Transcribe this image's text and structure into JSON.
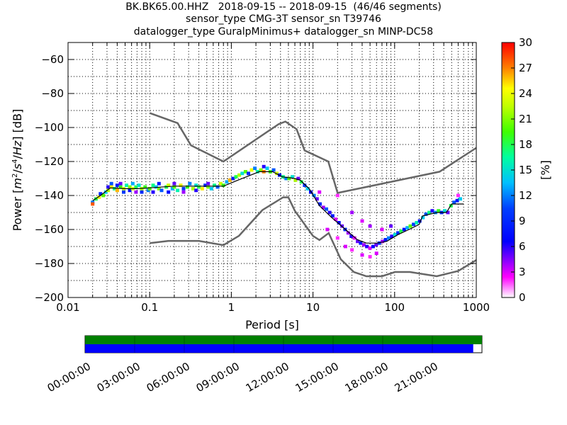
{
  "title_lines": [
    "BK.BK65.00.HHZ   2018-09-15 -- 2018-09-15  (46/46 segments)",
    "sensor_type CMG-3T sensor_sn T39746",
    "datalogger_type GuralpMinimus+ datalogger_sn MINP-DC58"
  ],
  "chart_data": {
    "type": "heatmap",
    "xlabel": "Period [s]",
    "ylabel": "Power [m²/s⁴/Hz] [dB]",
    "ylabel_parts": [
      "Power [",
      "m",
      "2",
      "/",
      "s",
      "4",
      "/",
      "Hz",
      "] [dB]"
    ],
    "xscale": "log",
    "xlim": [
      0.01,
      1000
    ],
    "ylim": [
      -200,
      -50
    ],
    "x_ticks": [
      0.01,
      0.1,
      1,
      10,
      100,
      1000
    ],
    "x_tick_labels": [
      "0.01",
      "0.1",
      "1",
      "10",
      "100",
      "1000"
    ],
    "y_ticks": [
      -200,
      -180,
      -160,
      -140,
      -120,
      -100,
      -80,
      -60
    ],
    "y_tick_labels": [
      "−200",
      "−180",
      "−160",
      "−140",
      "−120",
      "−100",
      "−80",
      "−60"
    ],
    "grid": true,
    "colorbar": {
      "label": "[%]",
      "range": [
        0,
        30
      ],
      "ticks": [
        0,
        3,
        6,
        9,
        12,
        15,
        18,
        21,
        24,
        27,
        30
      ],
      "tick_labels": [
        "0",
        "3",
        "6",
        "9",
        "12",
        "15",
        "18",
        "21",
        "24",
        "27",
        "30"
      ]
    },
    "noise_models": [
      {
        "name": "NHNM",
        "points": [
          [
            0.1,
            -91.5
          ],
          [
            0.22,
            -97.4
          ],
          [
            0.32,
            -110.5
          ],
          [
            0.8,
            -120
          ],
          [
            3.8,
            -98
          ],
          [
            4.6,
            -96.5
          ],
          [
            6.3,
            -101
          ],
          [
            7.9,
            -113.5
          ],
          [
            15.4,
            -120
          ],
          [
            20,
            -138.5
          ],
          [
            354.8,
            -126
          ],
          [
            1000,
            -112
          ]
        ]
      },
      {
        "name": "NLNM",
        "points": [
          [
            0.1,
            -168
          ],
          [
            0.17,
            -166.7
          ],
          [
            0.4,
            -166.7
          ],
          [
            0.8,
            -169.2
          ],
          [
            1.24,
            -163.7
          ],
          [
            2.4,
            -148.6
          ],
          [
            4.3,
            -141.1
          ],
          [
            5,
            -141.1
          ],
          [
            6,
            -149
          ],
          [
            10,
            -163.8
          ],
          [
            12,
            -166.2
          ],
          [
            15.6,
            -162.1
          ],
          [
            21.9,
            -177.5
          ],
          [
            31.6,
            -185
          ],
          [
            45,
            -187.5
          ],
          [
            70,
            -187.5
          ],
          [
            101,
            -185
          ],
          [
            154,
            -185
          ],
          [
            328,
            -187.5
          ],
          [
            600,
            -184.4
          ],
          [
            1000,
            -178
          ]
        ]
      }
    ],
    "mean_curve": [
      [
        0.02,
        -143
      ],
      [
        0.025,
        -140
      ],
      [
        0.033,
        -135.5
      ],
      [
        0.05,
        -136
      ],
      [
        0.07,
        -136
      ],
      [
        0.1,
        -135.5
      ],
      [
        0.2,
        -134.5
      ],
      [
        0.4,
        -134.5
      ],
      [
        0.8,
        -134.5
      ],
      [
        1.2,
        -131
      ],
      [
        2.2,
        -126
      ],
      [
        3.2,
        -126
      ],
      [
        4.2,
        -129
      ],
      [
        6,
        -130
      ],
      [
        7,
        -131
      ],
      [
        9,
        -136
      ],
      [
        12,
        -146
      ],
      [
        17,
        -153
      ],
      [
        25,
        -160
      ],
      [
        35,
        -166
      ],
      [
        45,
        -168
      ],
      [
        60,
        -168
      ],
      [
        80,
        -167
      ],
      [
        110,
        -163
      ],
      [
        150,
        -160
      ],
      [
        200,
        -157
      ],
      [
        220,
        -152
      ],
      [
        330,
        -150
      ],
      [
        430,
        -150
      ],
      [
        500,
        -145
      ],
      [
        700,
        -145
      ]
    ],
    "psd_cells": [
      [
        0.02,
        -144,
        12
      ],
      [
        0.02,
        -145,
        28
      ],
      [
        0.022,
        -142,
        18
      ],
      [
        0.024,
        -141,
        24
      ],
      [
        0.025,
        -139,
        9
      ],
      [
        0.027,
        -140,
        20
      ],
      [
        0.029,
        -138,
        14
      ],
      [
        0.031,
        -137,
        22
      ],
      [
        0.031,
        -135,
        6
      ],
      [
        0.034,
        -135,
        25
      ],
      [
        0.034,
        -133,
        11
      ],
      [
        0.037,
        -136,
        17
      ],
      [
        0.04,
        -134,
        8
      ],
      [
        0.04,
        -137,
        26
      ],
      [
        0.044,
        -135,
        19
      ],
      [
        0.044,
        -133,
        5
      ],
      [
        0.048,
        -136,
        23
      ],
      [
        0.048,
        -138,
        10
      ],
      [
        0.052,
        -134,
        16
      ],
      [
        0.057,
        -135,
        21
      ],
      [
        0.057,
        -137,
        7
      ],
      [
        0.062,
        -136,
        24
      ],
      [
        0.062,
        -133,
        13
      ],
      [
        0.068,
        -135,
        18
      ],
      [
        0.068,
        -138,
        4
      ],
      [
        0.074,
        -134,
        15
      ],
      [
        0.08,
        -136,
        22
      ],
      [
        0.08,
        -138,
        9
      ],
      [
        0.088,
        -135,
        19
      ],
      [
        0.096,
        -137,
        12
      ],
      [
        0.1,
        -136,
        20
      ],
      [
        0.11,
        -134,
        17
      ],
      [
        0.11,
        -138,
        6
      ],
      [
        0.12,
        -135,
        14
      ],
      [
        0.13,
        -136,
        21
      ],
      [
        0.13,
        -133,
        8
      ],
      [
        0.14,
        -137,
        11
      ],
      [
        0.16,
        -135,
        18
      ],
      [
        0.17,
        -134,
        23
      ],
      [
        0.17,
        -138,
        7
      ],
      [
        0.19,
        -136,
        13
      ],
      [
        0.2,
        -133,
        5
      ],
      [
        0.2,
        -135,
        20
      ],
      [
        0.22,
        -137,
        16
      ],
      [
        0.24,
        -134,
        24
      ],
      [
        0.26,
        -136,
        10
      ],
      [
        0.26,
        -138,
        4
      ],
      [
        0.29,
        -135,
        19
      ],
      [
        0.31,
        -133,
        12
      ],
      [
        0.34,
        -136,
        22
      ],
      [
        0.37,
        -134,
        15
      ],
      [
        0.37,
        -137,
        6
      ],
      [
        0.4,
        -135,
        18
      ],
      [
        0.44,
        -136,
        25
      ],
      [
        0.48,
        -134,
        9
      ],
      [
        0.52,
        -135,
        21
      ],
      [
        0.52,
        -133,
        5
      ],
      [
        0.57,
        -136,
        14
      ],
      [
        0.62,
        -134,
        17
      ],
      [
        0.68,
        -135,
        11
      ],
      [
        0.74,
        -133,
        23
      ],
      [
        0.8,
        -134,
        19
      ],
      [
        0.88,
        -132,
        13
      ],
      [
        0.96,
        -131,
        26
      ],
      [
        1.05,
        -130,
        8
      ],
      [
        1.14,
        -129,
        18
      ],
      [
        1.25,
        -128,
        22
      ],
      [
        1.36,
        -127,
        15
      ],
      [
        1.49,
        -126,
        20
      ],
      [
        1.62,
        -127,
        9
      ],
      [
        1.77,
        -125,
        24
      ],
      [
        1.94,
        -124,
        12
      ],
      [
        2.1,
        -126,
        16
      ],
      [
        2.3,
        -125,
        21
      ],
      [
        2.5,
        -123,
        6
      ],
      [
        2.5,
        -126,
        27
      ],
      [
        2.75,
        -124,
        14
      ],
      [
        3,
        -126,
        19
      ],
      [
        3.3,
        -125,
        11
      ],
      [
        3.6,
        -127,
        23
      ],
      [
        3.9,
        -128,
        8
      ],
      [
        4.3,
        -129,
        17
      ],
      [
        4.7,
        -130,
        12
      ],
      [
        5.1,
        -130,
        20
      ],
      [
        5.6,
        -129,
        15
      ],
      [
        6.1,
        -131,
        22
      ],
      [
        6.6,
        -130,
        5
      ],
      [
        7.2,
        -132,
        18
      ],
      [
        7.9,
        -134,
        10
      ],
      [
        8.6,
        -136,
        14
      ],
      [
        9.4,
        -138,
        7
      ],
      [
        10.3,
        -140,
        12
      ],
      [
        11.2,
        -142,
        5
      ],
      [
        12.2,
        -145,
        9
      ],
      [
        13.4,
        -147,
        4
      ],
      [
        14.6,
        -148,
        11
      ],
      [
        16,
        -150,
        6
      ],
      [
        17.4,
        -152,
        8
      ],
      [
        19,
        -154,
        3
      ],
      [
        20.8,
        -156,
        7
      ],
      [
        22.7,
        -158,
        5
      ],
      [
        24.8,
        -160,
        9
      ],
      [
        27,
        -162,
        4
      ],
      [
        29.5,
        -164,
        6
      ],
      [
        32.2,
        -165,
        3
      ],
      [
        35.2,
        -167,
        5
      ],
      [
        38.4,
        -168,
        8
      ],
      [
        41.9,
        -169,
        4
      ],
      [
        45.7,
        -170,
        6
      ],
      [
        49.9,
        -171,
        3
      ],
      [
        54.5,
        -170,
        7
      ],
      [
        59.5,
        -169,
        5
      ],
      [
        65,
        -168,
        9
      ],
      [
        71,
        -167,
        4
      ],
      [
        77.5,
        -166,
        8
      ],
      [
        84.6,
        -165,
        12
      ],
      [
        92.4,
        -164,
        6
      ],
      [
        101,
        -163,
        15
      ],
      [
        110,
        -162,
        9
      ],
      [
        120,
        -161,
        18
      ],
      [
        131,
        -160,
        7
      ],
      [
        143,
        -159,
        13
      ],
      [
        156,
        -158,
        20
      ],
      [
        171,
        -157,
        10
      ],
      [
        186,
        -156,
        16
      ],
      [
        203,
        -155,
        8
      ],
      [
        222,
        -153,
        14
      ],
      [
        242,
        -151,
        11
      ],
      [
        265,
        -150,
        17
      ],
      [
        289,
        -149,
        6
      ],
      [
        316,
        -150,
        12
      ],
      [
        345,
        -149,
        19
      ],
      [
        376,
        -150,
        9
      ],
      [
        411,
        -149,
        15
      ],
      [
        449,
        -150,
        5
      ],
      [
        490,
        -146,
        18
      ],
      [
        535,
        -144,
        11
      ],
      [
        584,
        -143,
        8
      ],
      [
        638,
        -142,
        14
      ],
      [
        15,
        -160,
        3
      ],
      [
        20,
        -165,
        2
      ],
      [
        25,
        -170,
        3
      ],
      [
        30,
        -172,
        2
      ],
      [
        40,
        -175,
        3
      ],
      [
        50,
        -176,
        2
      ],
      [
        60,
        -174,
        3
      ],
      [
        30,
        -150,
        4
      ],
      [
        40,
        -155,
        3
      ],
      [
        50,
        -158,
        4
      ],
      [
        70,
        -160,
        3
      ],
      [
        90,
        -158,
        5
      ],
      [
        20,
        -140,
        2
      ],
      [
        12,
        -138,
        3
      ],
      [
        600,
        -140,
        2
      ]
    ]
  },
  "timeline": {
    "tick_labels": [
      "00:00:00",
      "03:00:00",
      "06:00:00",
      "09:00:00",
      "12:00:00",
      "15:00:00",
      "18:00:00",
      "21:00:00"
    ],
    "coverage": [
      {
        "name": "data-available",
        "color": "#008000",
        "start_fraction": 0,
        "end_fraction": 1
      },
      {
        "name": "psd-segments",
        "color": "#0000ff",
        "start_fraction": 0,
        "end_fraction": 0.978
      }
    ]
  },
  "colors": {
    "noise_model": "#666666",
    "mean_curve": "#000000",
    "grid": "#000000"
  }
}
